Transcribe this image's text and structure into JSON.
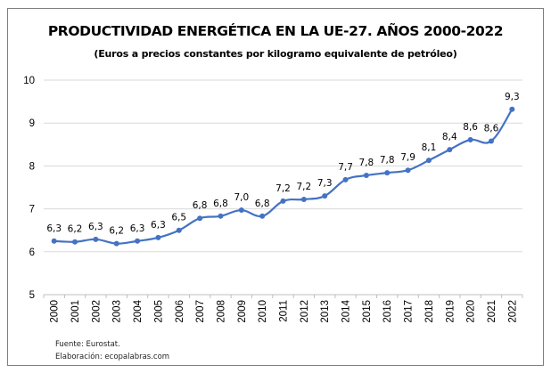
{
  "chart_data": {
    "type": "line",
    "title": "PRODUCTIVIDAD ENERGÉTICA EN LA UE-27. AÑOS 2000-2022",
    "subtitle": "(Euros a precios constantes por kilogramo equivalente de petróleo)",
    "xlabel": "",
    "ylabel": "",
    "ylim": [
      5,
      10
    ],
    "yticks": [
      "5",
      "6",
      "7",
      "8",
      "9",
      "10"
    ],
    "grid": true,
    "legend": "none",
    "categories": [
      "2000",
      "2001",
      "2002",
      "2003",
      "2004",
      "2005",
      "2006",
      "2007",
      "2008",
      "2009",
      "2010",
      "2011",
      "2012",
      "2013",
      "2014",
      "2015",
      "2016",
      "2017",
      "2018",
      "2019",
      "2020",
      "2021",
      "2022"
    ],
    "series": [
      {
        "name": "Productividad energética",
        "color": "#4472c4",
        "values": [
          6.25,
          6.23,
          6.29,
          6.19,
          6.25,
          6.33,
          6.5,
          6.78,
          6.83,
          6.97,
          6.83,
          7.18,
          7.22,
          7.3,
          7.68,
          7.78,
          7.84,
          7.9,
          8.13,
          8.38,
          8.61,
          8.58,
          9.32
        ],
        "labels": [
          "6,3",
          "6,2",
          "6,3",
          "6,2",
          "6,3",
          "6,3",
          "6,5",
          "6,8",
          "6,8",
          "7,0",
          "6,8",
          "7,2",
          "7,2",
          "7,3",
          "7,7",
          "7,8",
          "7,8",
          "7,9",
          "8,1",
          "8,4",
          "8,6",
          "8,6",
          "9,3"
        ]
      }
    ]
  },
  "footer": {
    "source": "Fuente: Eurostat.",
    "credit": "Elaboración: ecopalabras.com"
  }
}
